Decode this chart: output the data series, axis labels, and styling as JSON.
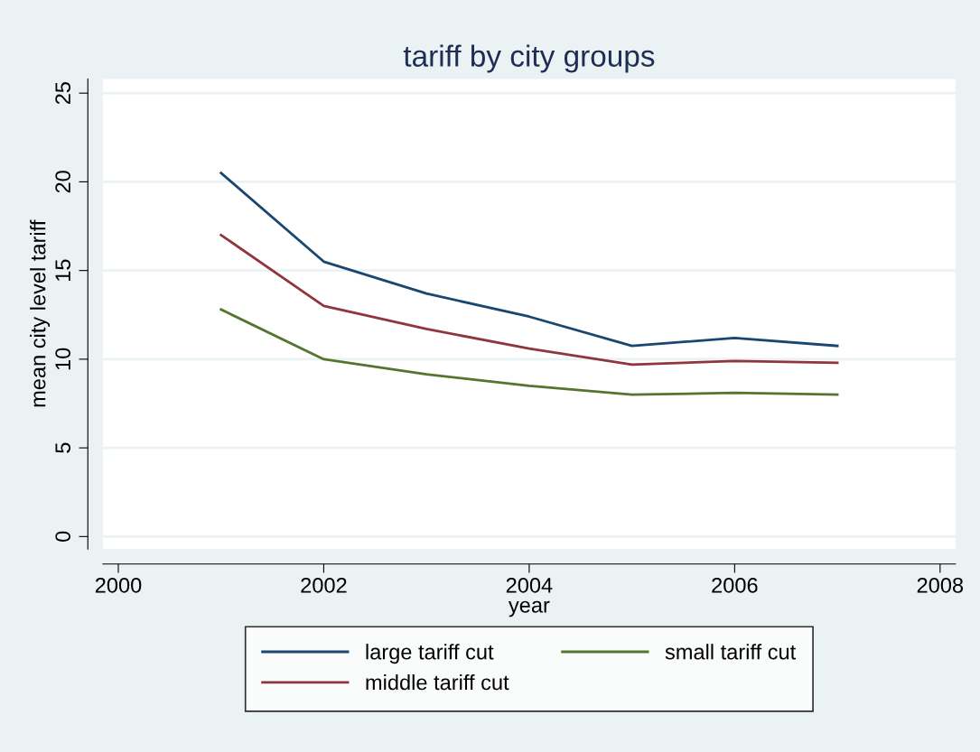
{
  "chart_data": {
    "type": "line",
    "title": "tariff by city groups",
    "xlabel": "year",
    "ylabel": "mean city level tariff",
    "x": [
      2001,
      2002,
      2003,
      2004,
      2005,
      2006,
      2007
    ],
    "series": [
      {
        "name": "large tariff cut",
        "color": "#1a476f",
        "values": [
          20.5,
          15.5,
          13.7,
          12.4,
          10.75,
          11.2,
          10.75
        ]
      },
      {
        "name": "middle tariff cut",
        "color": "#90353b",
        "values": [
          17.0,
          13.0,
          11.7,
          10.6,
          9.7,
          9.9,
          9.8
        ]
      },
      {
        "name": "small tariff cut",
        "color": "#55752f",
        "values": [
          12.8,
          10.0,
          9.15,
          8.5,
          8.0,
          8.1,
          8.0
        ]
      }
    ],
    "xlim": [
      1999.85,
      2008.15
    ],
    "xticks": [
      2000,
      2002,
      2004,
      2006,
      2008
    ],
    "ylim": [
      -0.7,
      25.8
    ],
    "yticks": [
      0,
      5,
      10,
      15,
      20,
      25
    ],
    "grid": "y",
    "legend": "bottom",
    "marker": "none",
    "line_style": "solid"
  }
}
